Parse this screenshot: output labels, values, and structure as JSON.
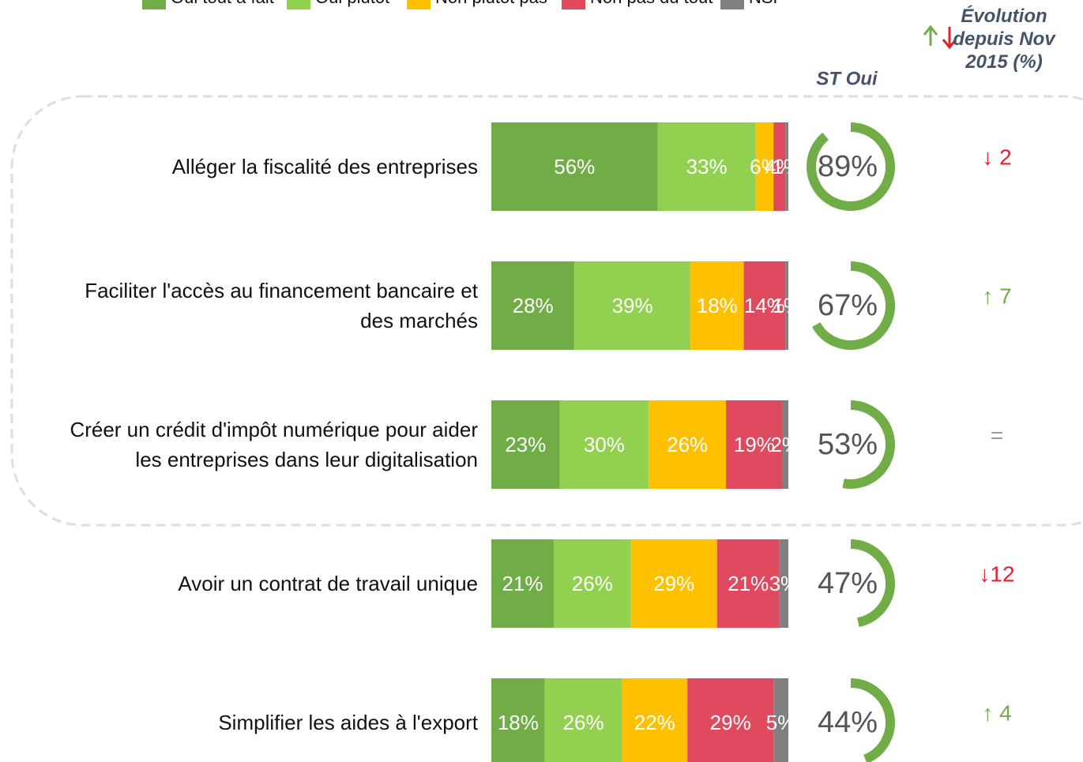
{
  "chart_data": {
    "type": "stacked_bar_horizontal",
    "categories": [
      "Alléger la fiscalité des entreprises",
      "Faciliter l'accès au financement bancaire et des marchés",
      "Créer un crédit d'impôt numérique pour aider les entreprises dans leur digitalisation",
      "Avoir un contrat de travail unique",
      "Simplifier les aides à l'export"
    ],
    "xlim": [
      0,
      100
    ],
    "series": [
      {
        "name": "Oui tout à fait",
        "color": "#70ad47",
        "values": [
          56,
          28,
          23,
          21,
          18
        ],
        "value_labels": [
          "56%",
          "28%",
          "23%",
          "21%",
          "18%"
        ]
      },
      {
        "name": "Oui plutôt",
        "color": "#92d050",
        "values": [
          33,
          39,
          30,
          26,
          26
        ],
        "value_labels": [
          "33%",
          "39%",
          "30%",
          "26%",
          "26%"
        ]
      },
      {
        "name": "Non plutôt pas",
        "color": "#ffc000",
        "values": [
          6,
          18,
          26,
          29,
          22
        ],
        "value_labels": [
          "6%",
          "18%",
          "26%",
          "29%",
          "22%"
        ]
      },
      {
        "name": "Non pas du tout",
        "color": "#e04a5f",
        "values": [
          4,
          14,
          19,
          21,
          29
        ],
        "value_labels": [
          "4%",
          "14%",
          "19%",
          "21%",
          "29%"
        ]
      },
      {
        "name": "NSP",
        "color": "#808080",
        "values": [
          1,
          1,
          2,
          3,
          5
        ],
        "value_labels": [
          "1%",
          "1%",
          "2%",
          "3%",
          "5%"
        ]
      }
    ],
    "st_title": "ST Oui",
    "st_values": [
      89,
      67,
      53,
      47,
      44
    ],
    "st_labels": [
      "89%",
      "67%",
      "53%",
      "47%",
      "44%"
    ],
    "st_color": "#70ad47",
    "evolution_title": "Évolution depuis Nov 2015 (%)",
    "evolution": [
      -2,
      7,
      0,
      -12,
      4
    ],
    "evolution_labels": [
      "↓ 2",
      "↑ 7",
      "=",
      "↓12",
      "↑ 4"
    ],
    "up_color": "#70ad47",
    "down_color": "#e0202f",
    "flat_color": "#999999"
  }
}
